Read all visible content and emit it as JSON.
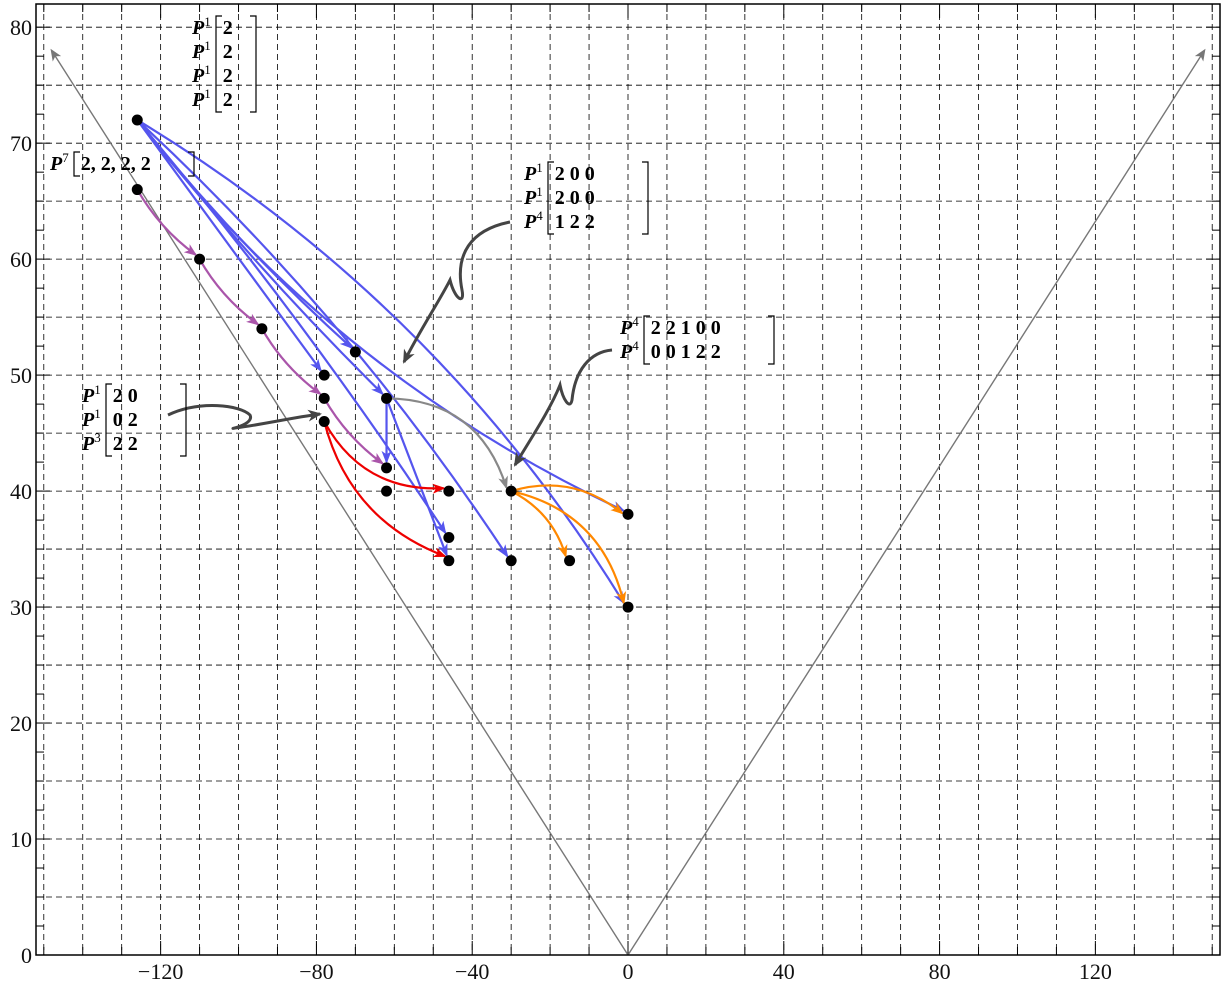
{
  "chart_data": {
    "type": "scatter",
    "title": "",
    "xlabel": "",
    "ylabel": "",
    "xlim": [
      -152,
      152
    ],
    "ylim": [
      0,
      82
    ],
    "x_ticks": [
      -120,
      -80,
      -40,
      0,
      40,
      80,
      120
    ],
    "y_ticks": [
      0,
      10,
      20,
      30,
      40,
      50,
      60,
      70,
      80
    ],
    "grid": "dashed, x every 10, y every 5",
    "cone_lines": [
      {
        "from": [
          0,
          0
        ],
        "to": [
          -148,
          78
        ],
        "color": "#777777",
        "arrow": true
      },
      {
        "from": [
          0,
          0
        ],
        "to": [
          148,
          78
        ],
        "color": "#777777",
        "arrow": true
      }
    ],
    "points": [
      [
        -126,
        72
      ],
      [
        -126,
        66
      ],
      [
        -110,
        60
      ],
      [
        -94,
        54
      ],
      [
        -70,
        52
      ],
      [
        -78,
        50
      ],
      [
        -78,
        48
      ],
      [
        -78,
        46
      ],
      [
        -62,
        48
      ],
      [
        -62,
        42
      ],
      [
        -62,
        40
      ],
      [
        -46,
        40
      ],
      [
        -46,
        36
      ],
      [
        -46,
        34
      ],
      [
        -30,
        40
      ],
      [
        -30,
        34
      ],
      [
        -15,
        34
      ],
      [
        0,
        38
      ],
      [
        0,
        30
      ]
    ],
    "series": [
      {
        "color": "#5555ee",
        "edges": [
          {
            "from": [
              -126,
              72
            ],
            "to": [
              -70,
              52
            ],
            "bend": 0.04
          },
          {
            "from": [
              -126,
              72
            ],
            "to": [
              -78,
              50
            ],
            "bend": 0.0
          },
          {
            "from": [
              -126,
              72
            ],
            "to": [
              -62,
              48
            ],
            "bend": 0.03
          },
          {
            "from": [
              -126,
              72
            ],
            "to": [
              -46,
              36
            ],
            "bend": -0.03
          },
          {
            "from": [
              -126,
              72
            ],
            "to": [
              -30,
              34
            ],
            "bend": -0.06
          },
          {
            "from": [
              -126,
              72
            ],
            "to": [
              0,
              30
            ],
            "bend": -0.12
          },
          {
            "from": [
              -126,
              72
            ],
            "to": [
              0,
              38
            ],
            "bend": 0.12
          },
          {
            "from": [
              -62,
              48
            ],
            "to": [
              -62,
              42
            ],
            "bend": 0.0
          },
          {
            "from": [
              -62,
              48
            ],
            "to": [
              -46,
              34
            ],
            "bend": 0.0
          }
        ]
      },
      {
        "color": "#aa55aa",
        "edges": [
          {
            "from": [
              -126,
              66
            ],
            "to": [
              -110,
              60
            ],
            "bend": 0.1
          },
          {
            "from": [
              -110,
              60
            ],
            "to": [
              -94,
              54
            ],
            "bend": 0.1
          },
          {
            "from": [
              -94,
              54
            ],
            "to": [
              -78,
              48
            ],
            "bend": 0.1
          },
          {
            "from": [
              -78,
              48
            ],
            "to": [
              -62,
              42
            ],
            "bend": 0.1
          }
        ]
      },
      {
        "color": "#ee0000",
        "edges": [
          {
            "from": [
              -78,
              46
            ],
            "to": [
              -46,
              40
            ],
            "bend": 0.3
          },
          {
            "from": [
              -78,
              46
            ],
            "to": [
              -46,
              34
            ],
            "bend": 0.25
          }
        ]
      },
      {
        "color": "#888888",
        "edges": [
          {
            "from": [
              -62,
              48
            ],
            "to": [
              -30,
              40
            ],
            "bend": -0.35
          }
        ]
      },
      {
        "color": "#ff8800",
        "edges": [
          {
            "from": [
              -30,
              40
            ],
            "to": [
              0,
              38
            ],
            "bend": -0.25
          },
          {
            "from": [
              -30,
              40
            ],
            "to": [
              -15,
              34
            ],
            "bend": -0.2
          },
          {
            "from": [
              -30,
              40
            ],
            "to": [
              0,
              30
            ],
            "bend": -0.3
          }
        ]
      }
    ],
    "annotations": [
      {
        "anchor": [
          -126,
          72
        ],
        "rows": [
          {
            "p": "P",
            "sup": "1",
            "m": "2"
          },
          {
            "p": "P",
            "sup": "1",
            "m": "2"
          },
          {
            "p": "P",
            "sup": "1",
            "m": "2"
          },
          {
            "p": "P",
            "sup": "1",
            "m": "2"
          }
        ]
      },
      {
        "anchor": [
          -126,
          66
        ],
        "rows": [
          {
            "p": "P",
            "sup": "7",
            "m": "2, 2, 2, 2"
          }
        ]
      },
      {
        "anchor": [
          -62,
          48
        ],
        "rows": [
          {
            "p": "P",
            "sup": "1",
            "m": "2  0  0"
          },
          {
            "p": "P",
            "sup": "1",
            "m": "2  0  0"
          },
          {
            "p": "P",
            "sup": "4",
            "m": "1  2  2"
          }
        ]
      },
      {
        "anchor": [
          -30,
          40
        ],
        "rows": [
          {
            "p": "P",
            "sup": "4",
            "m": "2  2  1  0  0"
          },
          {
            "p": "P",
            "sup": "4",
            "m": "0  0  1  2  2"
          }
        ]
      },
      {
        "anchor": [
          -78,
          46
        ],
        "rows": [
          {
            "p": "P",
            "sup": "1",
            "m": "2  0"
          },
          {
            "p": "P",
            "sup": "1",
            "m": "0  2"
          },
          {
            "p": "P",
            "sup": "3",
            "m": "2  2"
          }
        ]
      }
    ]
  }
}
